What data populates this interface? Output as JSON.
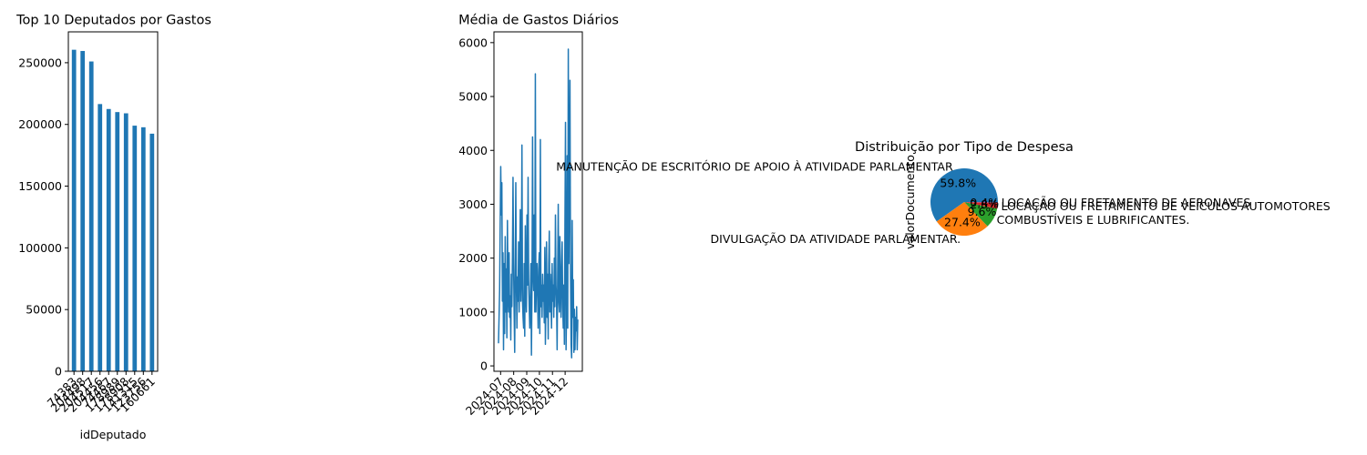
{
  "chart_data": [
    {
      "type": "bar",
      "title": "Top 10 Deputados por Gastos",
      "xlabel": "idDeputado",
      "ylabel": "",
      "ylim": [
        0,
        275000
      ],
      "yticks": [
        0,
        50000,
        100000,
        150000,
        200000,
        250000
      ],
      "yticklabels": [
        "0",
        "50000",
        "100000",
        "150000",
        "200000",
        "250000"
      ],
      "categories": [
        "74383",
        "204498",
        "204517",
        "204456",
        "74467",
        "178989",
        "178908",
        "141315",
        "123756",
        "160661"
      ],
      "values": [
        260500,
        259500,
        251000,
        216500,
        212500,
        210000,
        209000,
        199000,
        197700,
        192500
      ],
      "color": "#1f77b4"
    },
    {
      "type": "line",
      "title": "Média de Gastos Diários",
      "xlabel": "",
      "ylabel": "",
      "ylim": [
        -100,
        6200
      ],
      "yticks": [
        0,
        1000,
        2000,
        3000,
        4000,
        5000,
        6000
      ],
      "yticklabels": [
        "0",
        "1000",
        "2000",
        "3000",
        "4000",
        "5000",
        "6000"
      ],
      "xticklabels": [
        "2024-07",
        "2024-08",
        "2024-09",
        "2024-10",
        "2024-11",
        "2024-12"
      ],
      "x_start": "2024-06-26",
      "x_end": "2024-12-31",
      "values": [
        420,
        900,
        1400,
        2600,
        3700,
        2800,
        3400,
        1200,
        2100,
        300,
        1900,
        600,
        2400,
        1000,
        1800,
        520,
        2700,
        1400,
        1000,
        2100,
        900,
        1300,
        480,
        1700,
        1100,
        2050,
        3500,
        1950,
        1000,
        250,
        1800,
        3400,
        1500,
        700,
        1650,
        1200,
        2300,
        1000,
        1900,
        2900,
        1200,
        1700,
        4100,
        1200,
        900,
        700,
        1900,
        550,
        2600,
        1400,
        1000,
        2800,
        1500,
        3500,
        1600,
        1100,
        700,
        1200,
        1900,
        200,
        1500,
        4250,
        1700,
        1400,
        2800,
        1000,
        5420,
        1000,
        1600,
        1900,
        1300,
        700,
        1800,
        2100,
        600,
        4200,
        1100,
        1500,
        900,
        1700,
        1200,
        1500,
        800,
        2200,
        400,
        1300,
        2300,
        900,
        1700,
        500,
        1900,
        2500,
        1000,
        1700,
        1200,
        700,
        1900,
        1200,
        1500,
        900,
        2000,
        1100,
        2800,
        1500,
        1200,
        300,
        1700,
        3000,
        1200,
        1000,
        2400,
        1500,
        900,
        1800,
        2300,
        1100,
        700,
        1500,
        400,
        2600,
        4520,
        300,
        1100,
        3900,
        700,
        5880,
        1900,
        3600,
        5300,
        1800,
        400,
        150,
        2700,
        900,
        1600,
        250,
        1050,
        300,
        900,
        650,
        1100,
        300,
        860
      ],
      "color": "#1f77b4"
    },
    {
      "type": "pie",
      "title": "Distribuição por Tipo de Despesa",
      "ylabel": "valorDocumento",
      "slices": [
        {
          "label": "MANUTENÇÃO DE ESCRITÓRIO DE APOIO À ATIVIDADE PARLAMENTAR",
          "percent": 59.8,
          "pct_label": "59.8%",
          "color": "#1f77b4"
        },
        {
          "label": "DIVULGAÇÃO DA ATIVIDADE PARLAMENTAR.",
          "percent": 27.4,
          "pct_label": "27.4%",
          "color": "#ff7f0e"
        },
        {
          "label": "COMBUSTÍVEIS E LUBRIFICANTES.",
          "percent": 9.6,
          "pct_label": "9.6%",
          "color": "#2ca02c"
        },
        {
          "label": "LOCAÇÃO OU FRETAMENTO DE VEÍCULOS AUTOMOTORES",
          "percent": 2.8,
          "pct_label": "2.8%",
          "color": "#d62728"
        },
        {
          "label": "LOCAÇÃO OU FRETAMENTO DE AERONAVES",
          "percent": 0.4,
          "pct_label": "0.4%",
          "color": "#9467bd"
        }
      ]
    }
  ]
}
